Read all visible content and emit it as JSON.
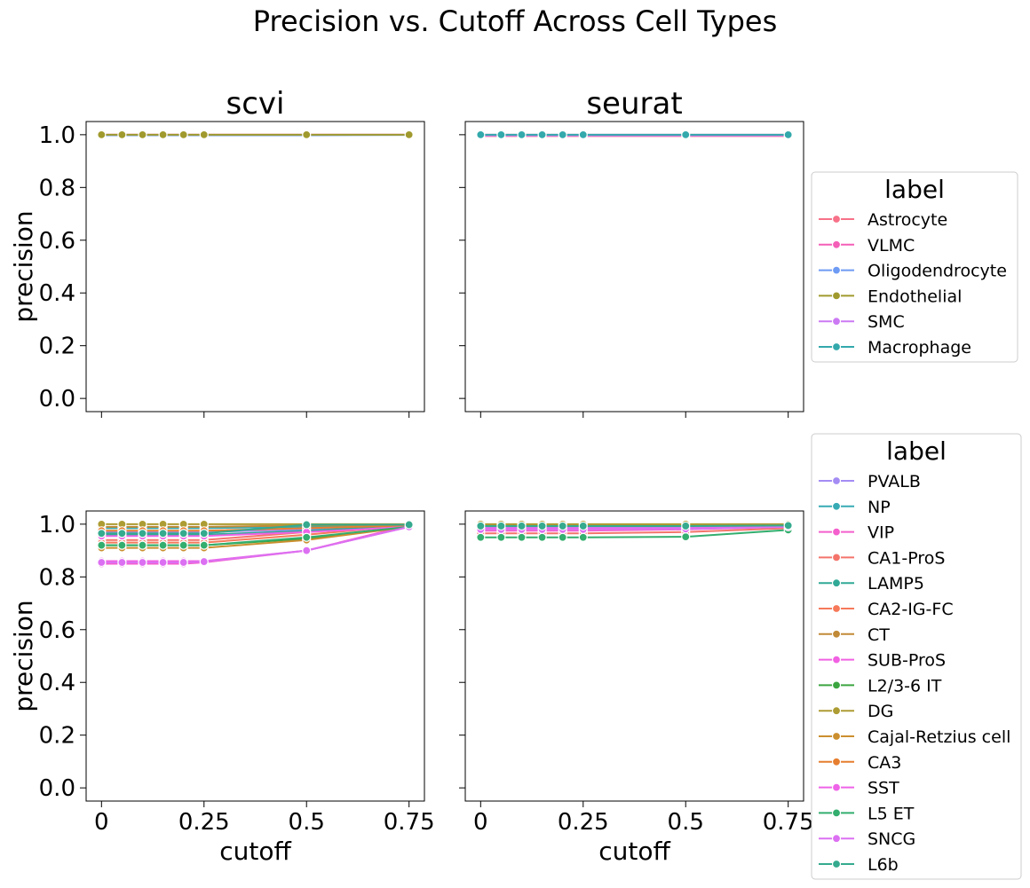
{
  "chart_data": {
    "type": "line",
    "title": "Precision vs. Cutoff Across Cell Types",
    "xlabel": "cutoff",
    "ylabel": "precision",
    "ylim": [
      -0.05,
      1.05
    ],
    "xlim": [
      -0.0375,
      0.7875
    ],
    "x": [
      0,
      0.05,
      0.1,
      0.15,
      0.2,
      0.25,
      0.5,
      0.75
    ],
    "x_tick_values": [
      0,
      0.25,
      0.5,
      0.75
    ],
    "x_tick_labels": [
      "0",
      "0.25",
      "0.5",
      "0.75"
    ],
    "y_tick_values": [
      0.0,
      0.2,
      0.4,
      0.6,
      0.8,
      1.0
    ],
    "y_tick_labels": [
      "0.0",
      "0.2",
      "0.4",
      "0.6",
      "0.8",
      "1.0"
    ],
    "column_titles": [
      "scvi",
      "seurat"
    ],
    "legends": [
      {
        "title": "label",
        "placement": "right, top row",
        "entries": [
          {
            "name": "Astrocyte",
            "color": "#f77189"
          },
          {
            "name": "VLMC",
            "color": "#f45fb7"
          },
          {
            "name": "Oligodendrocyte",
            "color": "#6e9bf4"
          },
          {
            "name": "Endothelial",
            "color": "#a09a2e"
          },
          {
            "name": "SMC",
            "color": "#cc7af4"
          },
          {
            "name": "Macrophage",
            "color": "#33a9ac"
          }
        ]
      },
      {
        "title": "label",
        "placement": "right, bottom row",
        "entries": [
          {
            "name": "PVALB",
            "color": "#a48cf4"
          },
          {
            "name": "NP",
            "color": "#37abb4"
          },
          {
            "name": "VIP",
            "color": "#f45fcd"
          },
          {
            "name": "CA1-ProS",
            "color": "#f4746b"
          },
          {
            "name": "LAMP5",
            "color": "#31a997"
          },
          {
            "name": "CA2-IG-FC",
            "color": "#f6795a"
          },
          {
            "name": "CT",
            "color": "#c18a37"
          },
          {
            "name": "SUB-ProS",
            "color": "#f161e2"
          },
          {
            "name": "L2/3-6 IT",
            "color": "#3ba540"
          },
          {
            "name": "DG",
            "color": "#ad9c33"
          },
          {
            "name": "Cajal-Retzius cell",
            "color": "#cb8f2f"
          },
          {
            "name": "CA3",
            "color": "#e67e2f"
          },
          {
            "name": "SST",
            "color": "#ee63e8"
          },
          {
            "name": "L5 ET",
            "color": "#33ae6e"
          },
          {
            "name": "SNCG",
            "color": "#dc70f2"
          },
          {
            "name": "L6b",
            "color": "#35aa8e"
          }
        ]
      }
    ],
    "panels": [
      {
        "row": 0,
        "col": 0,
        "title": "scvi",
        "series": [
          {
            "name": "Astrocyte",
            "values": [
              1.0,
              1.0,
              1.0,
              1.0,
              1.0,
              1.0,
              1.0,
              1.0
            ]
          },
          {
            "name": "VLMC",
            "values": [
              1.0,
              1.0,
              1.0,
              1.0,
              1.0,
              1.0,
              1.0,
              1.0
            ]
          },
          {
            "name": "Oligodendrocyte",
            "values": [
              0.998,
              0.998,
              0.998,
              0.998,
              0.998,
              0.998,
              0.998,
              0.999
            ]
          },
          {
            "name": "Endothelial",
            "values": [
              1.0,
              1.0,
              1.0,
              1.0,
              1.0,
              1.0,
              1.0,
              1.0
            ]
          }
        ]
      },
      {
        "row": 0,
        "col": 1,
        "title": "seurat",
        "series": [
          {
            "name": "Astrocyte",
            "values": [
              0.995,
              0.995,
              0.995,
              0.995,
              0.995,
              0.995,
              0.995,
              0.995
            ]
          },
          {
            "name": "VLMC",
            "values": [
              1.0,
              1.0,
              1.0,
              1.0,
              1.0,
              1.0,
              1.0,
              1.0
            ]
          },
          {
            "name": "Oligodendrocyte",
            "values": [
              0.998,
              0.998,
              0.998,
              0.998,
              0.998,
              0.998,
              0.998,
              0.998
            ]
          },
          {
            "name": "Endothelial",
            "values": [
              0.999,
              0.999,
              0.999,
              0.999,
              0.999,
              0.999,
              0.999,
              0.999
            ]
          },
          {
            "name": "SMC",
            "values": [
              0.997,
              0.997,
              0.997,
              0.997,
              0.997,
              0.997,
              0.997,
              0.997
            ]
          },
          {
            "name": "Macrophage",
            "values": [
              1.0,
              1.0,
              1.0,
              1.0,
              1.0,
              1.0,
              1.0,
              1.0
            ]
          }
        ]
      },
      {
        "row": 1,
        "col": 0,
        "title": "",
        "series": [
          {
            "name": "PVALB",
            "values": [
              0.97,
              0.97,
              0.97,
              0.97,
              0.97,
              0.97,
              0.98,
              0.99
            ]
          },
          {
            "name": "NP",
            "values": [
              0.985,
              0.985,
              0.985,
              0.985,
              0.985,
              0.985,
              0.99,
              0.995
            ]
          },
          {
            "name": "VIP",
            "values": [
              0.85,
              0.85,
              0.85,
              0.85,
              0.85,
              0.855,
              0.9,
              0.995
            ]
          },
          {
            "name": "CA1-ProS",
            "values": [
              0.94,
              0.94,
              0.94,
              0.94,
              0.94,
              0.94,
              0.97,
              0.995
            ]
          },
          {
            "name": "LAMP5",
            "values": [
              0.96,
              0.96,
              0.96,
              0.96,
              0.96,
              0.96,
              0.975,
              0.995
            ]
          },
          {
            "name": "CA2-IG-FC",
            "values": [
              0.93,
              0.93,
              0.93,
              0.93,
              0.93,
              0.93,
              0.96,
              0.995
            ]
          },
          {
            "name": "CT",
            "values": [
              0.99,
              0.99,
              0.99,
              0.99,
              0.99,
              0.99,
              0.995,
              0.998
            ]
          },
          {
            "name": "SUB-ProS",
            "values": [
              0.86,
              0.86,
              0.86,
              0.86,
              0.86,
              0.86,
              0.9,
              0.99
            ]
          },
          {
            "name": "L2/3-6 IT",
            "values": [
              0.92,
              0.92,
              0.92,
              0.92,
              0.92,
              0.92,
              0.945,
              0.99
            ]
          },
          {
            "name": "DG",
            "values": [
              1.0,
              1.0,
              1.0,
              1.0,
              1.0,
              1.0,
              1.0,
              1.0
            ]
          },
          {
            "name": "Cajal-Retzius cell",
            "values": [
              0.91,
              0.91,
              0.91,
              0.91,
              0.91,
              0.91,
              0.94,
              0.99
            ]
          },
          {
            "name": "CA3",
            "values": [
              0.975,
              0.975,
              0.975,
              0.975,
              0.975,
              0.975,
              0.985,
              0.995
            ]
          },
          {
            "name": "SST",
            "values": [
              0.955,
              0.955,
              0.955,
              0.955,
              0.955,
              0.955,
              0.97,
              0.99
            ]
          },
          {
            "name": "L5 ET",
            "values": [
              0.92,
              0.92,
              0.92,
              0.92,
              0.92,
              0.92,
              0.95,
              0.99
            ]
          },
          {
            "name": "SNCG",
            "values": [
              0.855,
              0.855,
              0.855,
              0.855,
              0.855,
              0.858,
              0.9,
              0.99
            ]
          },
          {
            "name": "L6b",
            "values": [
              0.965,
              0.965,
              0.965,
              0.965,
              0.965,
              0.965,
              0.998,
              0.998
            ]
          }
        ]
      },
      {
        "row": 1,
        "col": 1,
        "title": "",
        "series": [
          {
            "name": "PVALB",
            "values": [
              0.99,
              0.99,
              0.99,
              0.99,
              0.99,
              0.99,
              0.99,
              0.995
            ]
          },
          {
            "name": "NP",
            "values": [
              0.995,
              0.995,
              0.995,
              0.995,
              0.995,
              0.995,
              0.995,
              0.997
            ]
          },
          {
            "name": "VIP",
            "values": [
              0.975,
              0.975,
              0.975,
              0.975,
              0.975,
              0.975,
              0.98,
              0.99
            ]
          },
          {
            "name": "CA1-ProS",
            "values": [
              0.965,
              0.965,
              0.965,
              0.965,
              0.965,
              0.965,
              0.97,
              0.985
            ]
          },
          {
            "name": "CT",
            "values": [
              0.997,
              0.997,
              0.997,
              0.997,
              0.997,
              0.997,
              0.997,
              0.998
            ]
          },
          {
            "name": "DG",
            "values": [
              1.0,
              1.0,
              1.0,
              1.0,
              1.0,
              1.0,
              1.0,
              1.0
            ]
          },
          {
            "name": "SST",
            "values": [
              0.985,
              0.985,
              0.985,
              0.985,
              0.985,
              0.985,
              0.985,
              0.99
            ]
          },
          {
            "name": "L5 ET",
            "values": [
              0.95,
              0.95,
              0.95,
              0.95,
              0.95,
              0.95,
              0.952,
              0.978
            ]
          },
          {
            "name": "SNCG",
            "values": [
              0.98,
              0.98,
              0.98,
              0.98,
              0.98,
              0.98,
              0.982,
              0.99
            ]
          },
          {
            "name": "L6b",
            "values": [
              0.993,
              0.993,
              0.993,
              0.993,
              0.993,
              0.993,
              0.993,
              0.995
            ]
          }
        ]
      }
    ]
  }
}
